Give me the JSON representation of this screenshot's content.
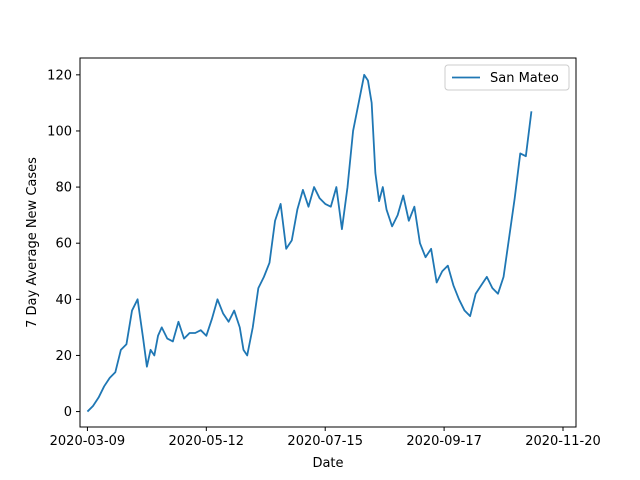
{
  "chart_data": {
    "type": "line",
    "xlabel": "Date",
    "ylabel": "7 Day Average New Cases",
    "x_tick_labels": [
      "2020-03-09",
      "2020-05-12",
      "2020-07-15",
      "2020-09-17",
      "2020-11-20"
    ],
    "y_ticks": [
      0,
      20,
      40,
      60,
      80,
      100,
      120
    ],
    "xlim": [
      "2020-03-05",
      "2020-11-27"
    ],
    "ylim": [
      -5.5,
      126
    ],
    "grid": false,
    "legend_position": "top-right",
    "series": [
      {
        "name": "San Mateo",
        "color": "#1f77b4",
        "x": [
          "2020-03-09",
          "2020-03-12",
          "2020-03-15",
          "2020-03-18",
          "2020-03-21",
          "2020-03-24",
          "2020-03-27",
          "2020-03-30",
          "2020-04-02",
          "2020-04-05",
          "2020-04-08",
          "2020-04-10",
          "2020-04-12",
          "2020-04-14",
          "2020-04-16",
          "2020-04-18",
          "2020-04-21",
          "2020-04-24",
          "2020-04-27",
          "2020-04-30",
          "2020-05-03",
          "2020-05-06",
          "2020-05-09",
          "2020-05-12",
          "2020-05-15",
          "2020-05-18",
          "2020-05-21",
          "2020-05-24",
          "2020-05-27",
          "2020-05-30",
          "2020-06-01",
          "2020-06-03",
          "2020-06-06",
          "2020-06-09",
          "2020-06-12",
          "2020-06-15",
          "2020-06-18",
          "2020-06-21",
          "2020-06-24",
          "2020-06-27",
          "2020-06-30",
          "2020-07-03",
          "2020-07-06",
          "2020-07-09",
          "2020-07-12",
          "2020-07-15",
          "2020-07-18",
          "2020-07-21",
          "2020-07-24",
          "2020-07-27",
          "2020-07-30",
          "2020-08-02",
          "2020-08-05",
          "2020-08-07",
          "2020-08-09",
          "2020-08-11",
          "2020-08-13",
          "2020-08-15",
          "2020-08-17",
          "2020-08-20",
          "2020-08-23",
          "2020-08-26",
          "2020-08-29",
          "2020-09-01",
          "2020-09-04",
          "2020-09-07",
          "2020-09-10",
          "2020-09-13",
          "2020-09-16",
          "2020-09-19",
          "2020-09-22",
          "2020-09-25",
          "2020-09-28",
          "2020-10-01",
          "2020-10-04",
          "2020-10-07",
          "2020-10-10",
          "2020-10-13",
          "2020-10-16",
          "2020-10-19",
          "2020-10-22",
          "2020-10-25",
          "2020-10-28",
          "2020-10-31",
          "2020-11-03",
          "2020-11-06",
          "2020-11-09",
          "2020-11-12",
          "2020-11-15",
          "2020-11-18",
          "2020-11-20"
        ],
        "values": [
          0,
          2,
          5,
          9,
          12,
          14,
          22,
          24,
          36,
          40,
          26,
          16,
          22,
          20,
          27,
          30,
          26,
          25,
          32,
          26,
          28,
          28,
          29,
          27,
          33,
          40,
          35,
          32,
          36,
          30,
          22,
          20,
          30,
          44,
          48,
          53,
          68,
          74,
          58,
          61,
          72,
          79,
          73,
          80,
          76,
          74,
          73,
          80,
          65,
          80,
          100,
          110,
          120,
          118,
          110,
          85,
          75,
          80,
          72,
          66,
          70,
          77,
          68,
          73,
          60,
          55,
          58,
          46,
          50,
          52,
          45,
          40,
          36,
          34,
          42,
          45,
          48,
          44,
          42,
          48,
          62,
          76,
          92,
          91,
          107,
          null,
          null,
          null,
          null,
          null,
          null
        ]
      }
    ]
  }
}
